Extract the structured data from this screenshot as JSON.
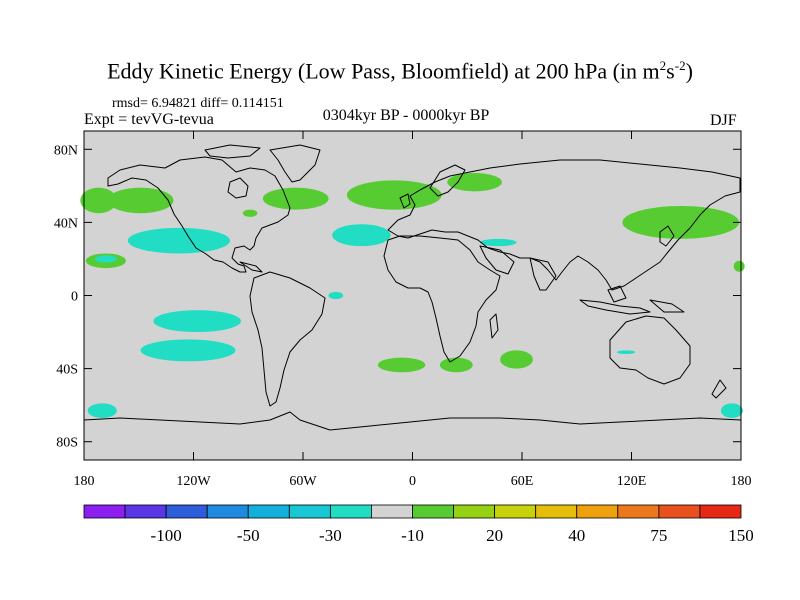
{
  "title": {
    "main": "Eddy Kinetic Energy (Low Pass, Bloomfield) at 200 hPa (in m",
    "sup1": "2",
    "s": "s",
    "sup2": "-2",
    "close": ")"
  },
  "subtitle": {
    "rmsd": "rmsd= 6.94821 diff= 0.114151",
    "expt": "Expt = tevVG-tevua",
    "period": "0304kyr BP - 0000kyr BP",
    "season": "DJF"
  },
  "map": {
    "projection": "cylindrical-equidistant",
    "lon_range": [
      -180,
      180
    ],
    "lat_range": [
      -90,
      90
    ],
    "background_color": "#d3d3d3",
    "lat_tick_labels": [
      "80N",
      "40N",
      "0",
      "40S",
      "80S"
    ],
    "lat_tick_values": [
      80,
      40,
      0,
      -40,
      -80
    ],
    "lon_tick_labels": [
      "180",
      "120W",
      "60W",
      "0",
      "60E",
      "120E",
      "180"
    ],
    "lon_tick_values": [
      -180,
      -120,
      -60,
      0,
      60,
      120,
      180
    ],
    "regions": [
      {
        "level": "positive-low",
        "color": "#56cc32",
        "lon": -172,
        "lat": 52,
        "rx": 10,
        "ry": 7
      },
      {
        "level": "positive-low",
        "color": "#56cc32",
        "lon": -149,
        "lat": 52,
        "rx": 18,
        "ry": 7
      },
      {
        "level": "positive-low",
        "color": "#56cc32",
        "lon": -89,
        "lat": 45,
        "rx": 4,
        "ry": 2
      },
      {
        "level": "positive-low",
        "color": "#56cc32",
        "lon": -64,
        "lat": 53,
        "rx": 18,
        "ry": 6
      },
      {
        "level": "positive-low",
        "color": "#56cc32",
        "lon": -10,
        "lat": 55,
        "rx": 26,
        "ry": 8
      },
      {
        "level": "positive-low",
        "color": "#56cc32",
        "lon": 34,
        "lat": 62,
        "rx": 15,
        "ry": 5
      },
      {
        "level": "positive-low",
        "color": "#56cc32",
        "lon": 147,
        "lat": 40,
        "rx": 32,
        "ry": 9
      },
      {
        "level": "positive-low",
        "color": "#56cc32",
        "lon": -168,
        "lat": 19,
        "rx": 11,
        "ry": 4
      },
      {
        "level": "positive-low",
        "color": "#56cc32",
        "lon": -6,
        "lat": -38,
        "rx": 13,
        "ry": 4
      },
      {
        "level": "positive-low",
        "color": "#56cc32",
        "lon": 24,
        "lat": -38,
        "rx": 9,
        "ry": 4
      },
      {
        "level": "positive-low",
        "color": "#56cc32",
        "lon": 57,
        "lat": -35,
        "rx": 9,
        "ry": 5
      },
      {
        "level": "positive-low",
        "color": "#56cc32",
        "lon": 179,
        "lat": 16,
        "rx": 3,
        "ry": 3
      },
      {
        "level": "negative-low",
        "color": "#21ddc4",
        "lon": -168,
        "lat": 20,
        "rx": 6,
        "ry": 2
      },
      {
        "level": "negative-low",
        "color": "#21ddc4",
        "lon": -128,
        "lat": 30,
        "rx": 28,
        "ry": 7
      },
      {
        "level": "negative-low",
        "color": "#21ddc4",
        "lon": -28,
        "lat": 33,
        "rx": 16,
        "ry": 6
      },
      {
        "level": "negative-low",
        "color": "#21ddc4",
        "lon": 47,
        "lat": 29,
        "rx": 10,
        "ry": 2
      },
      {
        "level": "negative-low",
        "color": "#21ddc4",
        "lon": -42,
        "lat": 0,
        "rx": 4,
        "ry": 2
      },
      {
        "level": "negative-low",
        "color": "#21ddc4",
        "lon": -118,
        "lat": -14,
        "rx": 24,
        "ry": 6
      },
      {
        "level": "negative-low",
        "color": "#21ddc4",
        "lon": -123,
        "lat": -30,
        "rx": 26,
        "ry": 6
      },
      {
        "level": "negative-low",
        "color": "#21ddc4",
        "lon": -170,
        "lat": -63,
        "rx": 8,
        "ry": 4
      },
      {
        "level": "negative-low",
        "color": "#21ddc4",
        "lon": 175,
        "lat": -63,
        "rx": 6,
        "ry": 4
      },
      {
        "level": "negative-low",
        "color": "#21ddc4",
        "lon": 117,
        "lat": -31,
        "rx": 5,
        "ry": 1
      }
    ]
  },
  "colorbar": {
    "colors": [
      "#8c1ef0",
      "#5a36e6",
      "#2e5ddc",
      "#1e8ae0",
      "#14b0dc",
      "#18c6d4",
      "#21ddc4",
      "#d3d3d3",
      "#56cc32",
      "#96d214",
      "#c8d20a",
      "#e6be0a",
      "#eea00e",
      "#ec781c",
      "#e8501e",
      "#e62814"
    ],
    "labels": [
      "-100",
      "-50",
      "-30",
      "-10",
      "20",
      "40",
      "75",
      "150"
    ]
  }
}
